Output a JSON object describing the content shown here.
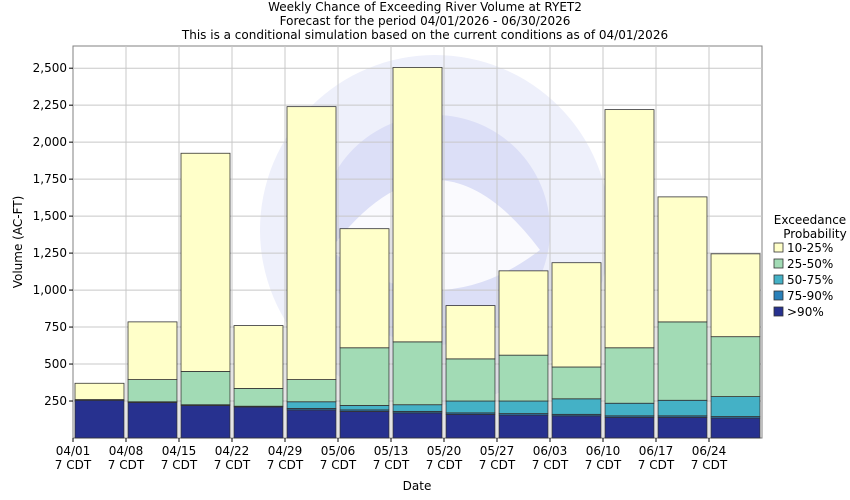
{
  "chart_data": {
    "type": "bar",
    "stacked": true,
    "title": "Weekly Chance of Exceeding River Volume at RYET2",
    "subtitle": "Forecast for the period 04/01/2026 - 06/30/2026",
    "subtitle2": "This is a conditional simulation based on the current conditions as of 04/01/2026",
    "xlabel": "Date",
    "ylabel": "Volume (AC-FT)",
    "ylim": [
      0,
      2650
    ],
    "yticks": [
      "250",
      "500",
      "750",
      "1,000",
      "1,250",
      "1,500",
      "1,750",
      "2,000",
      "2,250",
      "2,500"
    ],
    "ytick_values": [
      250,
      500,
      750,
      1000,
      1250,
      1500,
      1750,
      2000,
      2250,
      2500
    ],
    "xticks": [
      {
        "date": "04/01",
        "tz": "7 CDT"
      },
      {
        "date": "04/08",
        "tz": "7 CDT"
      },
      {
        "date": "04/15",
        "tz": "7 CDT"
      },
      {
        "date": "04/22",
        "tz": "7 CDT"
      },
      {
        "date": "04/29",
        "tz": "7 CDT"
      },
      {
        "date": "05/06",
        "tz": "7 CDT"
      },
      {
        "date": "05/13",
        "tz": "7 CDT"
      },
      {
        "date": "05/20",
        "tz": "7 CDT"
      },
      {
        "date": "05/27",
        "tz": "7 CDT"
      },
      {
        "date": "06/03",
        "tz": "7 CDT"
      },
      {
        "date": "06/10",
        "tz": "7 CDT"
      },
      {
        "date": "06/17",
        "tz": "7 CDT"
      },
      {
        "date": "06/24",
        "tz": "7 CDT"
      }
    ],
    "legend_title": [
      "Exceedance",
      "Probability"
    ],
    "legend_position": "right",
    "grid": true,
    "series": [
      {
        "name": ">90%",
        "color": "#27318f",
        "values": [
          255,
          240,
          220,
          210,
          190,
          180,
          170,
          160,
          155,
          150,
          140,
          140,
          135
        ]
      },
      {
        "name": "75-90%",
        "color": "#2a80b9",
        "values": [
          5,
          5,
          5,
          5,
          10,
          10,
          10,
          10,
          10,
          10,
          10,
          10,
          10
        ]
      },
      {
        "name": "50-75%",
        "color": "#44b1c6",
        "values": [
          0,
          0,
          0,
          0,
          45,
          30,
          45,
          80,
          85,
          105,
          85,
          105,
          135
        ]
      },
      {
        "name": "25-50%",
        "color": "#a2dbb5",
        "values": [
          0,
          150,
          225,
          120,
          150,
          390,
          425,
          285,
          310,
          215,
          375,
          530,
          405
        ]
      },
      {
        "name": "10-25%",
        "color": "#ffffc9",
        "values": [
          110,
          390,
          1475,
          425,
          1845,
          805,
          1855,
          360,
          570,
          705,
          1610,
          845,
          560
        ]
      }
    ]
  }
}
